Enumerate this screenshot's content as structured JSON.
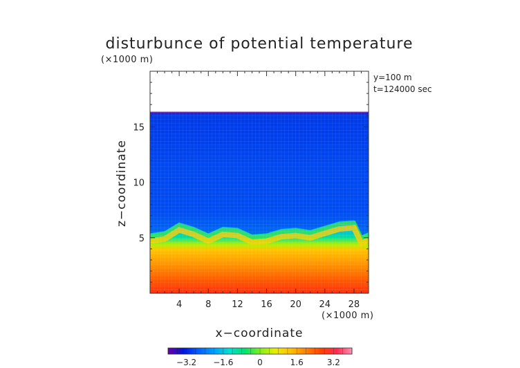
{
  "chart_data": {
    "type": "heatmap",
    "title": "disturbunce of potential temperature",
    "xlabel": "x−coordinate",
    "ylabel": "z−coordinate",
    "x_unit": "(×1000 m)",
    "z_unit": "(×1000 m)",
    "annotations": [
      "y=100 m",
      "t=124000 sec"
    ],
    "xlim": [
      0,
      30
    ],
    "zlim": [
      0,
      20
    ],
    "x_ticks": [
      4,
      8,
      12,
      16,
      20,
      24,
      28
    ],
    "z_ticks": [
      5,
      10,
      15
    ],
    "colorbar": {
      "range": [
        -4.0,
        4.0
      ],
      "ticks": [
        -3.2,
        -1.6,
        0,
        1.6,
        3.2
      ],
      "tick_labels": [
        "−3.2",
        "−1.6",
        "0",
        "1.6",
        "3.2"
      ],
      "colors": [
        "#6a00a8",
        "#0015d8",
        "#0060ff",
        "#00a0ff",
        "#00e0d0",
        "#00e070",
        "#80ee20",
        "#e8ee00",
        "#ffc000",
        "#ff8000",
        "#ff4000",
        "#ff2a50",
        "#ff90b0"
      ]
    },
    "fields": {
      "cold_layer_value": -2.6,
      "warm_layer_value": 3.0,
      "data_top_z": 16.3
    },
    "interface_z": [
      [
        0,
        5.4
      ],
      [
        2,
        5.6
      ],
      [
        4,
        6.4
      ],
      [
        6,
        6.0
      ],
      [
        8,
        5.4
      ],
      [
        10,
        6.0
      ],
      [
        12,
        5.9
      ],
      [
        14,
        5.3
      ],
      [
        16,
        5.4
      ],
      [
        18,
        5.8
      ],
      [
        20,
        5.9
      ],
      [
        22,
        5.7
      ],
      [
        24,
        6.1
      ],
      [
        26,
        6.5
      ],
      [
        28,
        6.6
      ],
      [
        29,
        5.2
      ],
      [
        30,
        5.5
      ]
    ]
  }
}
